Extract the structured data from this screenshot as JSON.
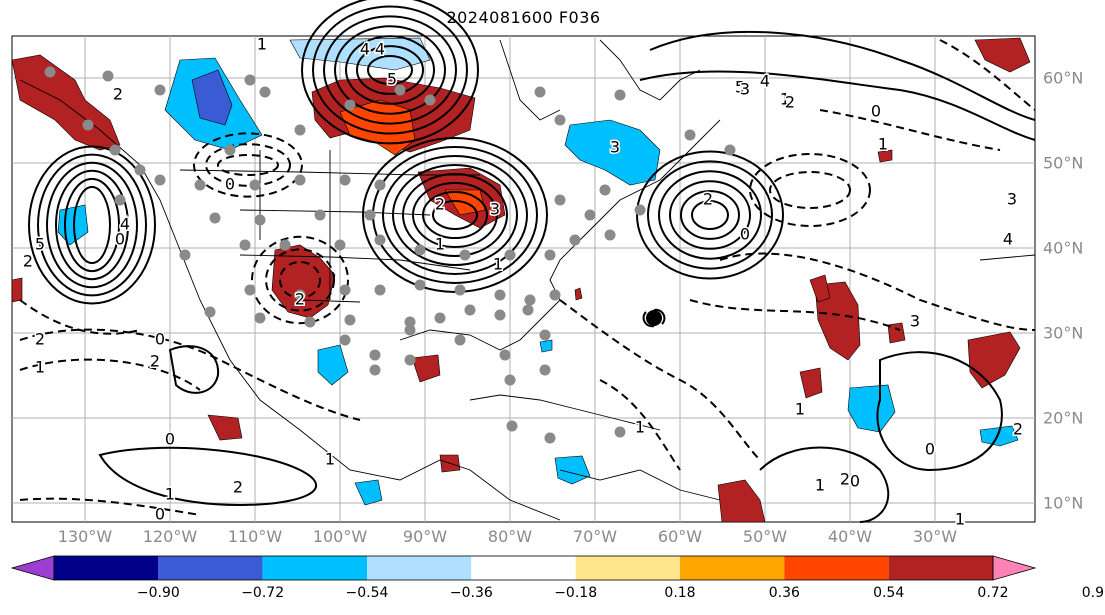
{
  "title": "2024081600 F036",
  "lat_labels": [
    "60°N",
    "50°N",
    "40°N",
    "30°N",
    "20°N",
    "10°N"
  ],
  "lon_labels": [
    "130°W",
    "120°W",
    "110°W",
    "100°W",
    "90°W",
    "80°W",
    "70°W",
    "60°W",
    "50°W",
    "40°W",
    "30°W"
  ],
  "colorbar": {
    "ticks": [
      "−0.90",
      "−0.72",
      "−0.54",
      "−0.36",
      "−0.18",
      "0.18",
      "0.36",
      "0.54",
      "0.72",
      "0.90"
    ],
    "colors": [
      "#9b3fd3",
      "#00008b",
      "#3b5bd5",
      "#00bfff",
      "#b0e0ff",
      "#ffffff",
      "#ffe68c",
      "#ffa500",
      "#ff4500",
      "#b22222",
      "#ff82b4"
    ]
  },
  "contour_labels": [
    "1",
    "4",
    "5",
    "2",
    "0",
    "3",
    "1",
    "5",
    "4",
    "2",
    "2",
    "1",
    "0",
    "2",
    "4",
    "5",
    "1",
    "2",
    "0",
    "4",
    "3",
    "1",
    "2",
    "0",
    "3",
    "4",
    "3",
    "2",
    "0",
    "1",
    "1",
    "3",
    "2",
    "1",
    "0",
    "2",
    "1",
    "0",
    "2",
    "0",
    "1",
    "2",
    "1",
    "0",
    "1"
  ],
  "tc_marker": "tropical-cyclone-symbol"
}
